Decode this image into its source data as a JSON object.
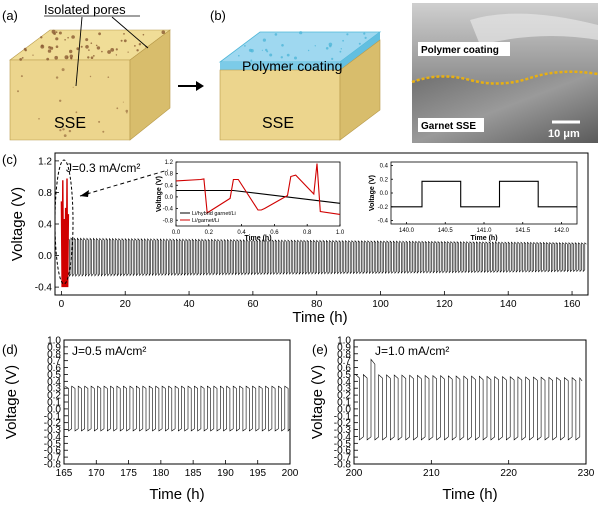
{
  "schematic": {
    "panel_a": {
      "tag": "(a)",
      "annotation": "Isolated pores",
      "block_label": "SSE",
      "colors": {
        "top": "#f0dd97",
        "front": "#ecd58d",
        "side": "#d8bd6c",
        "pore": "#8a5a32"
      }
    },
    "panel_b": {
      "tag": "(b)",
      "coating_label": "Polymer coating",
      "block_label": "SSE",
      "colors": {
        "coating": "#9fd8f0",
        "coating_edge": "#4fb6d8"
      }
    },
    "sem": {
      "coating_label": "Polymer coating",
      "sse_label": "Garnet SSE",
      "scale_bar": "10 μm",
      "interface_color": "#e8b012"
    }
  },
  "chart_data": [
    {
      "id": "c",
      "tag": "(c)",
      "type": "line",
      "current_label": "J=0.3 mA/cm²",
      "xlabel": "Time (h)",
      "ylabel": "Voltage (V)",
      "xlim": [
        -2,
        165
      ],
      "ylim": [
        -0.5,
        1.3
      ],
      "xticks": [
        0,
        20,
        40,
        60,
        80,
        100,
        120,
        140,
        160
      ],
      "yticks": [
        -0.4,
        0.0,
        0.4,
        0.8,
        1.2
      ],
      "series": [
        {
          "color": "#000000",
          "half_period_h": 0.5,
          "start_h": 2,
          "end_h": 164.5,
          "amplitude_start_v": 0.24,
          "amplitude_end_v": 0.18,
          "drift_v": -0.02
        },
        {
          "color": "#d00000",
          "start_h": 0,
          "end_h": 2.2,
          "max_v": 0.98,
          "min_v": -0.4
        }
      ],
      "highlight_ellipse_color": "#000000"
    },
    {
      "id": "c-inset-1",
      "type": "line",
      "xlabel": "Time (h)",
      "ylabel": "Voltage (V)",
      "xlim": [
        0,
        1.0
      ],
      "ylim": [
        -1.0,
        1.2
      ],
      "xticks": [
        0.0,
        0.2,
        0.4,
        0.6,
        0.8,
        1.0
      ],
      "yticks": [
        -0.8,
        -0.4,
        0.0,
        0.4,
        0.8,
        1.2
      ],
      "legend": [
        "Li/hybrid garnet/Li",
        "Li/garnet/Li"
      ],
      "series": [
        {
          "name": "Li/hybrid garnet/Li",
          "color": "#000000",
          "x": [
            0.0,
            0.35,
            0.35,
            1.0
          ],
          "y": [
            0.22,
            0.22,
            0.22,
            -0.22
          ]
        },
        {
          "name": "Li/garnet/Li",
          "color": "#d00000",
          "x": [
            0.0,
            0.15,
            0.17,
            0.19,
            0.33,
            0.35,
            0.38,
            0.5,
            0.52,
            0.54,
            0.68,
            0.7,
            0.73,
            0.84,
            0.86,
            0.88,
            1.0
          ],
          "y": [
            0.55,
            0.6,
            0.62,
            -0.55,
            -0.05,
            0.6,
            0.6,
            -0.45,
            -0.45,
            -0.4,
            0.05,
            0.7,
            0.75,
            0.1,
            1.15,
            -0.5,
            -0.6
          ]
        }
      ]
    },
    {
      "id": "c-inset-2",
      "type": "line",
      "xlabel": "Time (h)",
      "ylabel": "Voltage (V)",
      "xlim": [
        139.8,
        142.2
      ],
      "ylim": [
        -0.45,
        0.45
      ],
      "xticks": [
        140.0,
        140.5,
        141.0,
        141.5,
        142.0
      ],
      "yticks": [
        -0.4,
        -0.2,
        0.0,
        0.2,
        0.4
      ],
      "series": [
        {
          "color": "#000000",
          "x": [
            139.8,
            140.2,
            140.2,
            140.7,
            140.7,
            141.2,
            141.2,
            141.7,
            141.7,
            142.2
          ],
          "y": [
            -0.2,
            -0.2,
            0.17,
            0.17,
            -0.2,
            -0.2,
            0.17,
            0.17,
            -0.2,
            -0.2
          ]
        }
      ]
    },
    {
      "id": "d",
      "tag": "(d)",
      "type": "line",
      "current_label": "J=0.5 mA/cm²",
      "xlabel": "Time (h)",
      "ylabel": "Voltage (V)",
      "xlim": [
        165,
        200
      ],
      "ylim": [
        -0.8,
        1.0
      ],
      "xticks": [
        165,
        170,
        175,
        180,
        185,
        190,
        195,
        200
      ],
      "yticks": [
        -0.8,
        -0.7,
        -0.6,
        -0.5,
        -0.4,
        -0.3,
        -0.2,
        -0.1,
        0.0,
        0.1,
        0.2,
        0.3,
        0.4,
        0.5,
        0.6,
        0.7,
        0.8,
        0.9,
        1.0
      ],
      "series": [
        {
          "color": "#000000",
          "half_period_h": 0.5,
          "start_h": 165.2,
          "end_h": 200,
          "pos_v": 0.33,
          "neg_v": -0.32
        }
      ]
    },
    {
      "id": "e",
      "tag": "(e)",
      "type": "line",
      "current_label": "J=1.0 mA/cm²",
      "xlabel": "Time (h)",
      "ylabel": "Voltage (V)",
      "xlim": [
        200,
        230
      ],
      "ylim": [
        -0.8,
        1.0
      ],
      "xticks": [
        200,
        210,
        220,
        230
      ],
      "yticks": [
        -0.8,
        -0.7,
        -0.6,
        -0.5,
        -0.4,
        -0.3,
        -0.2,
        -0.1,
        0.0,
        0.1,
        0.2,
        0.3,
        0.4,
        0.5,
        0.6,
        0.7,
        0.8,
        0.9,
        1.0
      ],
      "series": [
        {
          "color": "#000000",
          "half_period_h": 0.5,
          "start_h": 200.2,
          "end_h": 229.5,
          "pos_v": 0.5,
          "neg_v": -0.45,
          "spike_v": 0.72
        }
      ]
    }
  ]
}
